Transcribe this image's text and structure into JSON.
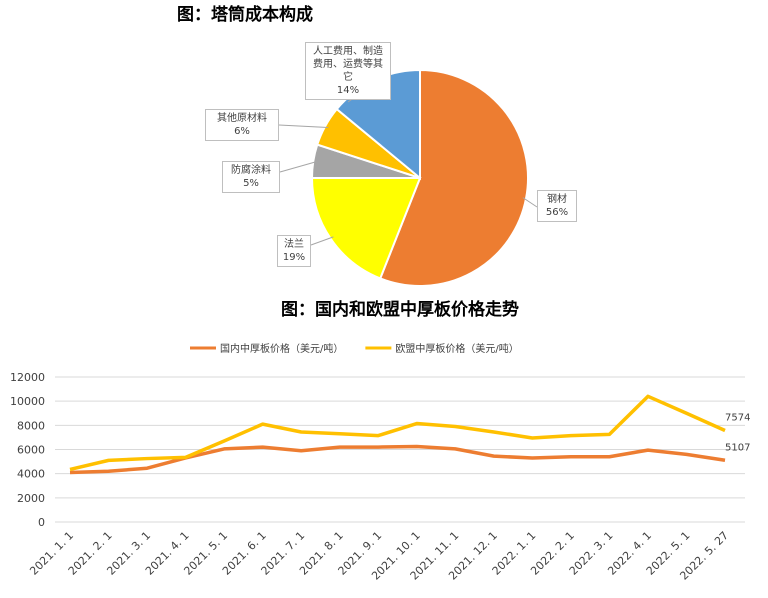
{
  "chart_data": [
    {
      "type": "pie",
      "title": "图：塔筒成本构成",
      "categories": [
        "钢材",
        "法兰",
        "防腐涂料",
        "其他原材料",
        "人工费用、制造费用、运费等其它"
      ],
      "values": [
        56,
        19,
        5,
        6,
        14
      ],
      "value_labels": [
        "56%",
        "19%",
        "5%",
        "6%",
        "14%"
      ],
      "colors": [
        "#ED7D31",
        "#FFFF00",
        "#A5A5A5",
        "#FFC000",
        "#5B9BD5"
      ]
    },
    {
      "type": "line",
      "title": "图：国内和欧盟中厚板价格走势",
      "categories": [
        "2021. 1. 1",
        "2021. 2. 1",
        "2021. 3. 1",
        "2021. 4. 1",
        "2021. 5. 1",
        "2021. 6. 1",
        "2021. 7. 1",
        "2021. 8. 1",
        "2021. 9. 1",
        "2021. 10. 1",
        "2021. 11. 1",
        "2021. 12. 1",
        "2022. 1. 1",
        "2022. 2. 1",
        "2022. 3. 1",
        "2022. 4. 1",
        "2022. 5. 1",
        "2022. 5. 27"
      ],
      "series": [
        {
          "name": "国内中厚板价格（美元/吨）",
          "color": "#ED7D31",
          "values": [
            4100,
            4200,
            4450,
            5300,
            6050,
            6200,
            5900,
            6200,
            6200,
            6250,
            6050,
            5450,
            5300,
            5400,
            5400,
            5950,
            5600,
            5107
          ]
        },
        {
          "name": "欧盟中厚板价格（美元/吨）",
          "color": "#FFC000",
          "values": [
            4350,
            5100,
            5250,
            5350,
            6700,
            8100,
            7450,
            7300,
            7150,
            8150,
            7900,
            7450,
            6950,
            7150,
            7250,
            10400,
            9000,
            7574
          ]
        }
      ],
      "ylim": [
        0,
        12000
      ],
      "yticks": [
        0,
        2000,
        4000,
        6000,
        8000,
        10000,
        12000
      ],
      "grid": true,
      "legend": "top",
      "label_last": true
    }
  ]
}
